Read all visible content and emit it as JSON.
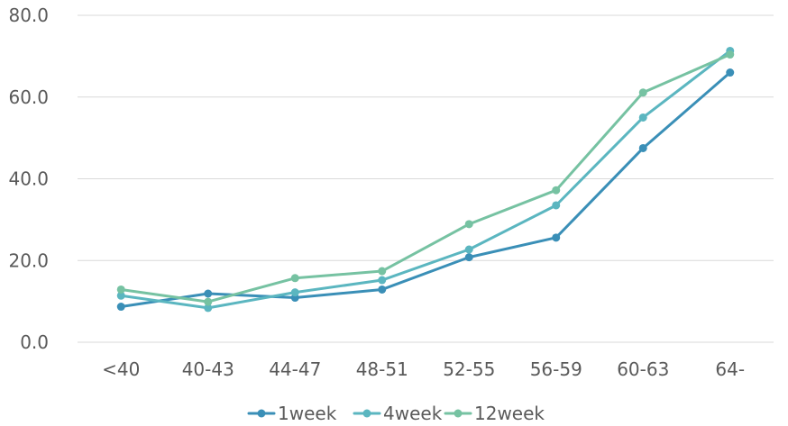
{
  "chart_data": {
    "type": "line",
    "title": "",
    "xlabel": "",
    "ylabel": "",
    "categories": [
      "<40",
      "40-43",
      "44-47",
      "48-51",
      "52-55",
      "56-59",
      "60-63",
      "64-"
    ],
    "y_ticks": [
      "0.0",
      "20.0",
      "40.0",
      "60.0",
      "80.0"
    ],
    "ylim": [
      0,
      80
    ],
    "grid": true,
    "legend_position": "bottom",
    "series": [
      {
        "name": "1week",
        "color": "#3a8fb7",
        "values": [
          8.7,
          11.9,
          10.9,
          12.9,
          20.8,
          25.6,
          47.5,
          66.0
        ]
      },
      {
        "name": "4week",
        "color": "#5bb6c0",
        "values": [
          11.4,
          8.4,
          12.2,
          15.2,
          22.7,
          33.5,
          55.0,
          71.3
        ]
      },
      {
        "name": "12week",
        "color": "#76c2a2",
        "values": [
          12.9,
          9.9,
          15.7,
          17.4,
          28.9,
          37.2,
          61.1,
          70.4
        ]
      }
    ]
  }
}
